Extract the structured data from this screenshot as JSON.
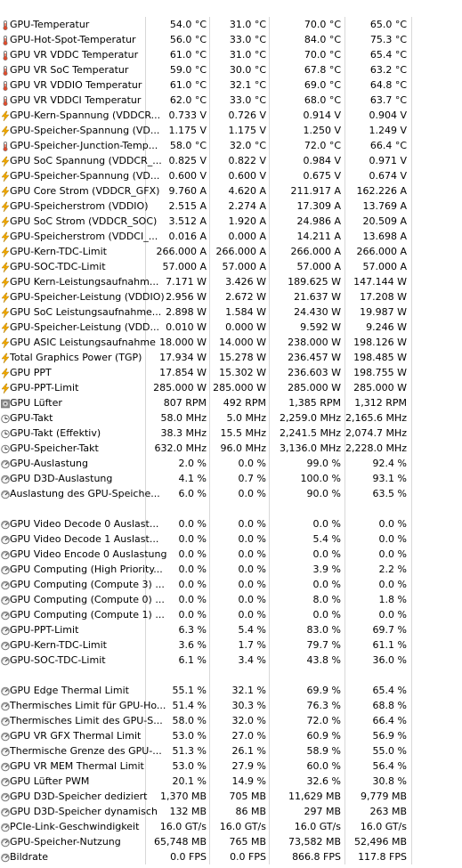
{
  "rows": [
    {
      "icon": "thermometer",
      "name": "GPU-Temperatur",
      "v": [
        "54.0 °C",
        "31.0 °C",
        "70.0 °C",
        "65.0 °C"
      ]
    },
    {
      "icon": "thermometer",
      "name": "GPU-Hot-Spot-Temperatur",
      "v": [
        "56.0 °C",
        "33.0 °C",
        "84.0 °C",
        "75.3 °C"
      ]
    },
    {
      "icon": "thermometer",
      "name": "GPU VR VDDC Temperatur",
      "v": [
        "61.0 °C",
        "31.0 °C",
        "70.0 °C",
        "65.4 °C"
      ]
    },
    {
      "icon": "thermometer",
      "name": "GPU VR SoC Temperatur",
      "v": [
        "59.0 °C",
        "30.0 °C",
        "67.8 °C",
        "63.2 °C"
      ]
    },
    {
      "icon": "thermometer",
      "name": "GPU VR VDDIO Temperatur",
      "v": [
        "61.0 °C",
        "32.1 °C",
        "69.0 °C",
        "64.8 °C"
      ]
    },
    {
      "icon": "thermometer",
      "name": "GPU VR VDDCI Temperatur",
      "v": [
        "62.0 °C",
        "33.0 °C",
        "68.0 °C",
        "63.7 °C"
      ]
    },
    {
      "icon": "lightning",
      "name": "GPU-Kern-Spannung (VDDCR...",
      "v": [
        "0.733 V",
        "0.726 V",
        "0.914 V",
        "0.904 V"
      ]
    },
    {
      "icon": "lightning",
      "name": "GPU-Speicher-Spannung (VD...",
      "v": [
        "1.175 V",
        "1.175 V",
        "1.250 V",
        "1.249 V"
      ]
    },
    {
      "icon": "thermometer",
      "name": "GPU-Speicher-Junction-Temp...",
      "v": [
        "58.0 °C",
        "32.0 °C",
        "72.0 °C",
        "66.4 °C"
      ]
    },
    {
      "icon": "lightning",
      "name": "GPU SoC Spannung (VDDCR_...",
      "v": [
        "0.825 V",
        "0.822 V",
        "0.984 V",
        "0.971 V"
      ]
    },
    {
      "icon": "lightning",
      "name": "GPU-Speicher-Spannung (VD...",
      "v": [
        "0.600 V",
        "0.600 V",
        "0.675 V",
        "0.674 V"
      ]
    },
    {
      "icon": "lightning",
      "name": "GPU Core Strom (VDDCR_GFX)",
      "v": [
        "9.760 A",
        "4.620 A",
        "211.917 A",
        "162.226 A"
      ]
    },
    {
      "icon": "lightning",
      "name": "GPU-Speicherstrom (VDDIO)",
      "v": [
        "2.515 A",
        "2.274 A",
        "17.309 A",
        "13.769 A"
      ]
    },
    {
      "icon": "lightning",
      "name": "GPU SoC Strom (VDDCR_SOC)",
      "v": [
        "3.512 A",
        "1.920 A",
        "24.986 A",
        "20.509 A"
      ]
    },
    {
      "icon": "lightning",
      "name": "GPU-Speicherstrom (VDDCI_...",
      "v": [
        "0.016 A",
        "0.000 A",
        "14.211 A",
        "13.698 A"
      ]
    },
    {
      "icon": "lightning",
      "name": "GPU-Kern-TDC-Limit",
      "v": [
        "266.000 A",
        "266.000 A",
        "266.000 A",
        "266.000 A"
      ]
    },
    {
      "icon": "lightning",
      "name": "GPU-SOC-TDC-Limit",
      "v": [
        "57.000 A",
        "57.000 A",
        "57.000 A",
        "57.000 A"
      ]
    },
    {
      "icon": "lightning",
      "name": "GPU Kern-Leistungsaufnahm...",
      "v": [
        "7.171 W",
        "3.426 W",
        "189.625 W",
        "147.144 W"
      ]
    },
    {
      "icon": "lightning",
      "name": "GPU-Speicher-Leistung (VDDIO)",
      "v": [
        "2.956 W",
        "2.672 W",
        "21.637 W",
        "17.208 W"
      ]
    },
    {
      "icon": "lightning",
      "name": "GPU SoC Leistungsaufnahme...",
      "v": [
        "2.898 W",
        "1.584 W",
        "24.430 W",
        "19.987 W"
      ]
    },
    {
      "icon": "lightning",
      "name": "GPU-Speicher-Leistung (VDD...",
      "v": [
        "0.010 W",
        "0.000 W",
        "9.592 W",
        "9.246 W"
      ]
    },
    {
      "icon": "lightning",
      "name": "GPU ASIC Leistungsaufnahme",
      "v": [
        "18.000 W",
        "14.000 W",
        "238.000 W",
        "198.126 W"
      ]
    },
    {
      "icon": "lightning",
      "name": "Total Graphics Power (TGP)",
      "v": [
        "17.934 W",
        "15.278 W",
        "236.457 W",
        "198.485 W"
      ]
    },
    {
      "icon": "lightning",
      "name": "GPU PPT",
      "v": [
        "17.854 W",
        "15.302 W",
        "236.603 W",
        "198.755 W"
      ]
    },
    {
      "icon": "lightning",
      "name": "GPU-PPT-Limit",
      "v": [
        "285.000 W",
        "285.000 W",
        "285.000 W",
        "285.000 W"
      ]
    },
    {
      "icon": "fan",
      "name": "GPU Lüfter",
      "v": [
        "807 RPM",
        "492 RPM",
        "1,385 RPM",
        "1,312 RPM"
      ]
    },
    {
      "icon": "clock",
      "name": "GPU-Takt",
      "v": [
        "58.0 MHz",
        "5.0 MHz",
        "2,259.0 MHz",
        "2,165.6 MHz"
      ]
    },
    {
      "icon": "clock",
      "name": "GPU-Takt (Effektiv)",
      "v": [
        "38.3 MHz",
        "15.5 MHz",
        "2,241.5 MHz",
        "2,074.7 MHz"
      ]
    },
    {
      "icon": "clock",
      "name": "GPU-Speicher-Takt",
      "v": [
        "632.0 MHz",
        "96.0 MHz",
        "3,136.0 MHz",
        "2,228.0 MHz"
      ]
    },
    {
      "icon": "gauge",
      "name": "GPU-Auslastung",
      "v": [
        "2.0 %",
        "0.0 %",
        "99.0 %",
        "92.4 %"
      ]
    },
    {
      "icon": "gauge",
      "name": "GPU D3D-Auslastung",
      "v": [
        "4.1 %",
        "0.7 %",
        "100.0 %",
        "93.1 %"
      ]
    },
    {
      "icon": "gauge",
      "name": "Auslastung des GPU-Speiche...",
      "v": [
        "6.0 %",
        "0.0 %",
        "90.0 %",
        "63.5 %"
      ]
    },
    {
      "gap": true
    },
    {
      "icon": "gauge",
      "name": "GPU Video Decode 0 Auslast...",
      "v": [
        "0.0 %",
        "0.0 %",
        "0.0 %",
        "0.0 %"
      ]
    },
    {
      "icon": "gauge",
      "name": "GPU Video Decode 1 Auslast...",
      "v": [
        "0.0 %",
        "0.0 %",
        "5.4 %",
        "0.0 %"
      ]
    },
    {
      "icon": "gauge",
      "name": "GPU Video Encode 0 Auslastung",
      "v": [
        "0.0 %",
        "0.0 %",
        "0.0 %",
        "0.0 %"
      ]
    },
    {
      "icon": "gauge",
      "name": "GPU Computing (High Priority...",
      "v": [
        "0.0 %",
        "0.0 %",
        "3.9 %",
        "2.2 %"
      ]
    },
    {
      "icon": "gauge",
      "name": "GPU Computing (Compute 3) ...",
      "v": [
        "0.0 %",
        "0.0 %",
        "0.0 %",
        "0.0 %"
      ]
    },
    {
      "icon": "gauge",
      "name": "GPU Computing (Compute 0) ...",
      "v": [
        "0.0 %",
        "0.0 %",
        "8.0 %",
        "1.8 %"
      ]
    },
    {
      "icon": "gauge",
      "name": "GPU Computing (Compute 1) ...",
      "v": [
        "0.0 %",
        "0.0 %",
        "0.0 %",
        "0.0 %"
      ]
    },
    {
      "icon": "gauge",
      "name": "GPU-PPT-Limit",
      "v": [
        "6.3 %",
        "5.4 %",
        "83.0 %",
        "69.7 %"
      ]
    },
    {
      "icon": "gauge",
      "name": "GPU-Kern-TDC-Limit",
      "v": [
        "3.6 %",
        "1.7 %",
        "79.7 %",
        "61.1 %"
      ]
    },
    {
      "icon": "gauge",
      "name": "GPU-SOC-TDC-Limit",
      "v": [
        "6.1 %",
        "3.4 %",
        "43.8 %",
        "36.0 %"
      ]
    },
    {
      "gap": true
    },
    {
      "icon": "gauge",
      "name": "GPU Edge Thermal Limit",
      "v": [
        "55.1 %",
        "32.1 %",
        "69.9 %",
        "65.4 %"
      ]
    },
    {
      "icon": "gauge",
      "name": "Thermisches Limit für GPU-Ho...",
      "v": [
        "51.4 %",
        "30.3 %",
        "76.3 %",
        "68.8 %"
      ]
    },
    {
      "icon": "gauge",
      "name": "Thermisches Limit des GPU-S...",
      "v": [
        "58.0 %",
        "32.0 %",
        "72.0 %",
        "66.4 %"
      ]
    },
    {
      "icon": "gauge",
      "name": "GPU VR GFX Thermal Limit",
      "v": [
        "53.0 %",
        "27.0 %",
        "60.9 %",
        "56.9 %"
      ]
    },
    {
      "icon": "gauge",
      "name": "Thermische Grenze des GPU-...",
      "v": [
        "51.3 %",
        "26.1 %",
        "58.9 %",
        "55.0 %"
      ]
    },
    {
      "icon": "gauge",
      "name": "GPU VR MEM Thermal Limit",
      "v": [
        "53.0 %",
        "27.9 %",
        "60.0 %",
        "56.4 %"
      ]
    },
    {
      "icon": "gauge",
      "name": "GPU Lüfter PWM",
      "v": [
        "20.1 %",
        "14.9 %",
        "32.6 %",
        "30.8 %"
      ]
    },
    {
      "icon": "gauge",
      "name": "GPU D3D-Speicher dediziert",
      "v": [
        "1,370 MB",
        "705 MB",
        "11,629 MB",
        "9,779 MB"
      ]
    },
    {
      "icon": "gauge",
      "name": "GPU D3D-Speicher dynamisch",
      "v": [
        "132 MB",
        "86 MB",
        "297 MB",
        "263 MB"
      ]
    },
    {
      "icon": "gauge",
      "name": "PCIe-Link-Geschwindigkeit",
      "v": [
        "16.0 GT/s",
        "16.0 GT/s",
        "16.0 GT/s",
        "16.0 GT/s"
      ]
    },
    {
      "icon": "gauge",
      "name": "GPU-Speicher-Nutzung",
      "v": [
        "65,748 MB",
        "765 MB",
        "73,582 MB",
        "52,496 MB"
      ]
    },
    {
      "icon": "gauge",
      "name": "Bildrate",
      "v": [
        "0.0 FPS",
        "0.0 FPS",
        "866.8 FPS",
        "117.8 FPS"
      ]
    }
  ],
  "colors": {
    "accent": "#f2a900",
    "grid": "#d8d8d8",
    "icon_gray": "#7a7a7a"
  }
}
